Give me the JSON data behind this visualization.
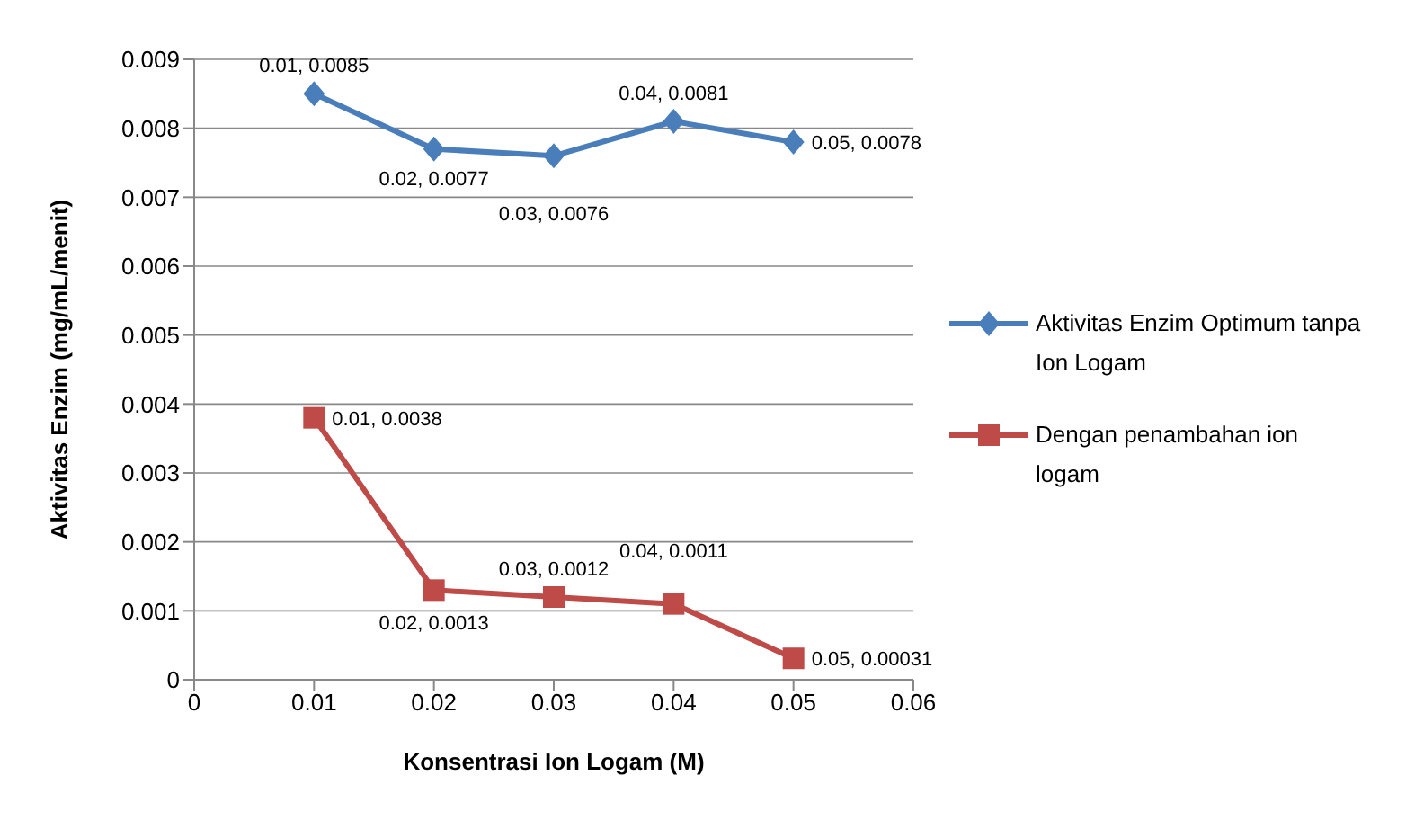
{
  "chart_data": {
    "type": "line",
    "xlabel": "Konsentrasi Ion Logam (M)",
    "ylabel": "Aktivitas Enzim  (mg/mL/menit)",
    "x": [
      0.01,
      0.02,
      0.03,
      0.04,
      0.05
    ],
    "xlim": [
      0,
      0.06
    ],
    "xticks": [
      {
        "value": 0,
        "label": "0"
      },
      {
        "value": 0.01,
        "label": "0.01"
      },
      {
        "value": 0.02,
        "label": "0.02"
      },
      {
        "value": 0.03,
        "label": "0.03"
      },
      {
        "value": 0.04,
        "label": "0.04"
      },
      {
        "value": 0.05,
        "label": "0.05"
      },
      {
        "value": 0.06,
        "label": "0.06"
      }
    ],
    "ylim": [
      0,
      0.009
    ],
    "yticks": [
      {
        "value": 0,
        "label": "0"
      },
      {
        "value": 0.001,
        "label": "0.001"
      },
      {
        "value": 0.002,
        "label": "0.002"
      },
      {
        "value": 0.003,
        "label": "0.003"
      },
      {
        "value": 0.004,
        "label": "0.004"
      },
      {
        "value": 0.005,
        "label": "0.005"
      },
      {
        "value": 0.006,
        "label": "0.006"
      },
      {
        "value": 0.007,
        "label": "0.007"
      },
      {
        "value": 0.008,
        "label": "0.008"
      },
      {
        "value": 0.009,
        "label": "0.009"
      }
    ],
    "grid": "y",
    "legend": "right",
    "series": [
      {
        "name": "Aktivitas Enzim Optimum tanpa Ion Logam",
        "color": "#4a7ebb",
        "marker": "diamond",
        "values": [
          0.0085,
          0.0077,
          0.0076,
          0.0081,
          0.0078
        ],
        "value_labels": [
          "0.01, 0.0085",
          "0.02, 0.0077",
          "0.03, 0.0076",
          "0.04, 0.0081",
          "0.05, 0.0078"
        ]
      },
      {
        "name": "Dengan penambahan ion logam",
        "color": "#be4b48",
        "marker": "square",
        "values": [
          0.0038,
          0.0013,
          0.0012,
          0.0011,
          0.00031
        ],
        "value_labels": [
          "0.01, 0.0038",
          "0.02, 0.0013",
          "0.03, 0.0012",
          "0.04, 0.0011",
          "0.05, 0.00031"
        ]
      }
    ]
  }
}
